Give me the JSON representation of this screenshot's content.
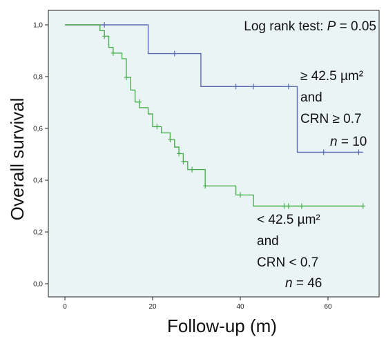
{
  "chart_data": {
    "type": "line",
    "subtype": "kaplan-meier-step",
    "title": "",
    "xlabel": "Follow-up (m)",
    "ylabel": "Overall survival",
    "xlim": [
      -3,
      70
    ],
    "ylim": [
      -0.05,
      1.07
    ],
    "xticks": [
      0,
      20,
      40,
      60
    ],
    "xtick_labels": [
      "0",
      "20",
      "40",
      "60"
    ],
    "yticks": [
      0.0,
      0.2,
      0.4,
      0.6,
      0.8,
      1.0
    ],
    "ytick_labels": [
      "0,0",
      "0,2",
      "0,4",
      "0,6",
      "0,8",
      "1,0"
    ],
    "grid": false,
    "background": "#eaf4f4",
    "annotation": {
      "prefix": "Log rank test: ",
      "p_symbol": "P",
      "suffix": " = 0.05"
    },
    "series": [
      {
        "color": "#5b6bb5",
        "label_lines": [
          "≥ 42.5 µm²",
          "and",
          "CRN ≥ 0.7"
        ],
        "n_label": "n = 10",
        "n_prefix": "n",
        "n_suffix": " = 10",
        "steps": [
          [
            0,
            1.0
          ],
          [
            19,
            1.0
          ],
          [
            19,
            0.889
          ],
          [
            31,
            0.889
          ],
          [
            31,
            0.762
          ],
          [
            53,
            0.762
          ],
          [
            53,
            0.508
          ],
          [
            68,
            0.508
          ]
        ],
        "censored": [
          [
            9,
            1.0
          ],
          [
            25,
            0.889
          ],
          [
            39,
            0.762
          ],
          [
            43,
            0.762
          ],
          [
            51,
            0.762
          ],
          [
            59,
            0.508
          ],
          [
            67,
            0.508
          ]
        ]
      },
      {
        "color": "#4caf50",
        "label_lines": [
          "< 42.5 µm²",
          "and",
          "CRN < 0.7"
        ],
        "n_prefix": "n",
        "n_suffix": " = 46",
        "steps": [
          [
            0,
            1.0
          ],
          [
            8,
            1.0
          ],
          [
            8,
            0.978
          ],
          [
            9,
            0.978
          ],
          [
            9,
            0.956
          ],
          [
            10,
            0.956
          ],
          [
            10,
            0.913
          ],
          [
            11,
            0.913
          ],
          [
            11,
            0.891
          ],
          [
            13,
            0.891
          ],
          [
            13,
            0.869
          ],
          [
            14,
            0.869
          ],
          [
            14,
            0.797
          ],
          [
            15,
            0.797
          ],
          [
            15,
            0.748
          ],
          [
            16,
            0.748
          ],
          [
            16,
            0.702
          ],
          [
            17,
            0.702
          ],
          [
            17,
            0.68
          ],
          [
            19,
            0.68
          ],
          [
            19,
            0.656
          ],
          [
            20,
            0.656
          ],
          [
            20,
            0.607
          ],
          [
            22,
            0.607
          ],
          [
            22,
            0.583
          ],
          [
            24,
            0.583
          ],
          [
            24,
            0.557
          ],
          [
            25,
            0.557
          ],
          [
            25,
            0.528
          ],
          [
            26,
            0.528
          ],
          [
            26,
            0.503
          ],
          [
            27,
            0.503
          ],
          [
            27,
            0.472
          ],
          [
            28,
            0.472
          ],
          [
            28,
            0.441
          ],
          [
            32,
            0.441
          ],
          [
            32,
            0.378
          ],
          [
            39,
            0.378
          ],
          [
            39,
            0.343
          ],
          [
            43,
            0.343
          ],
          [
            43,
            0.3
          ],
          [
            68,
            0.3
          ]
        ],
        "censored": [
          [
            9,
            0.956
          ],
          [
            11,
            0.891
          ],
          [
            14,
            0.797
          ],
          [
            17,
            0.702
          ],
          [
            21,
            0.607
          ],
          [
            24,
            0.557
          ],
          [
            26,
            0.503
          ],
          [
            27,
            0.472
          ],
          [
            29,
            0.441
          ],
          [
            32,
            0.378
          ],
          [
            40,
            0.343
          ],
          [
            50,
            0.3
          ],
          [
            51,
            0.3
          ],
          [
            54,
            0.3
          ],
          [
            68,
            0.3
          ]
        ]
      }
    ]
  }
}
